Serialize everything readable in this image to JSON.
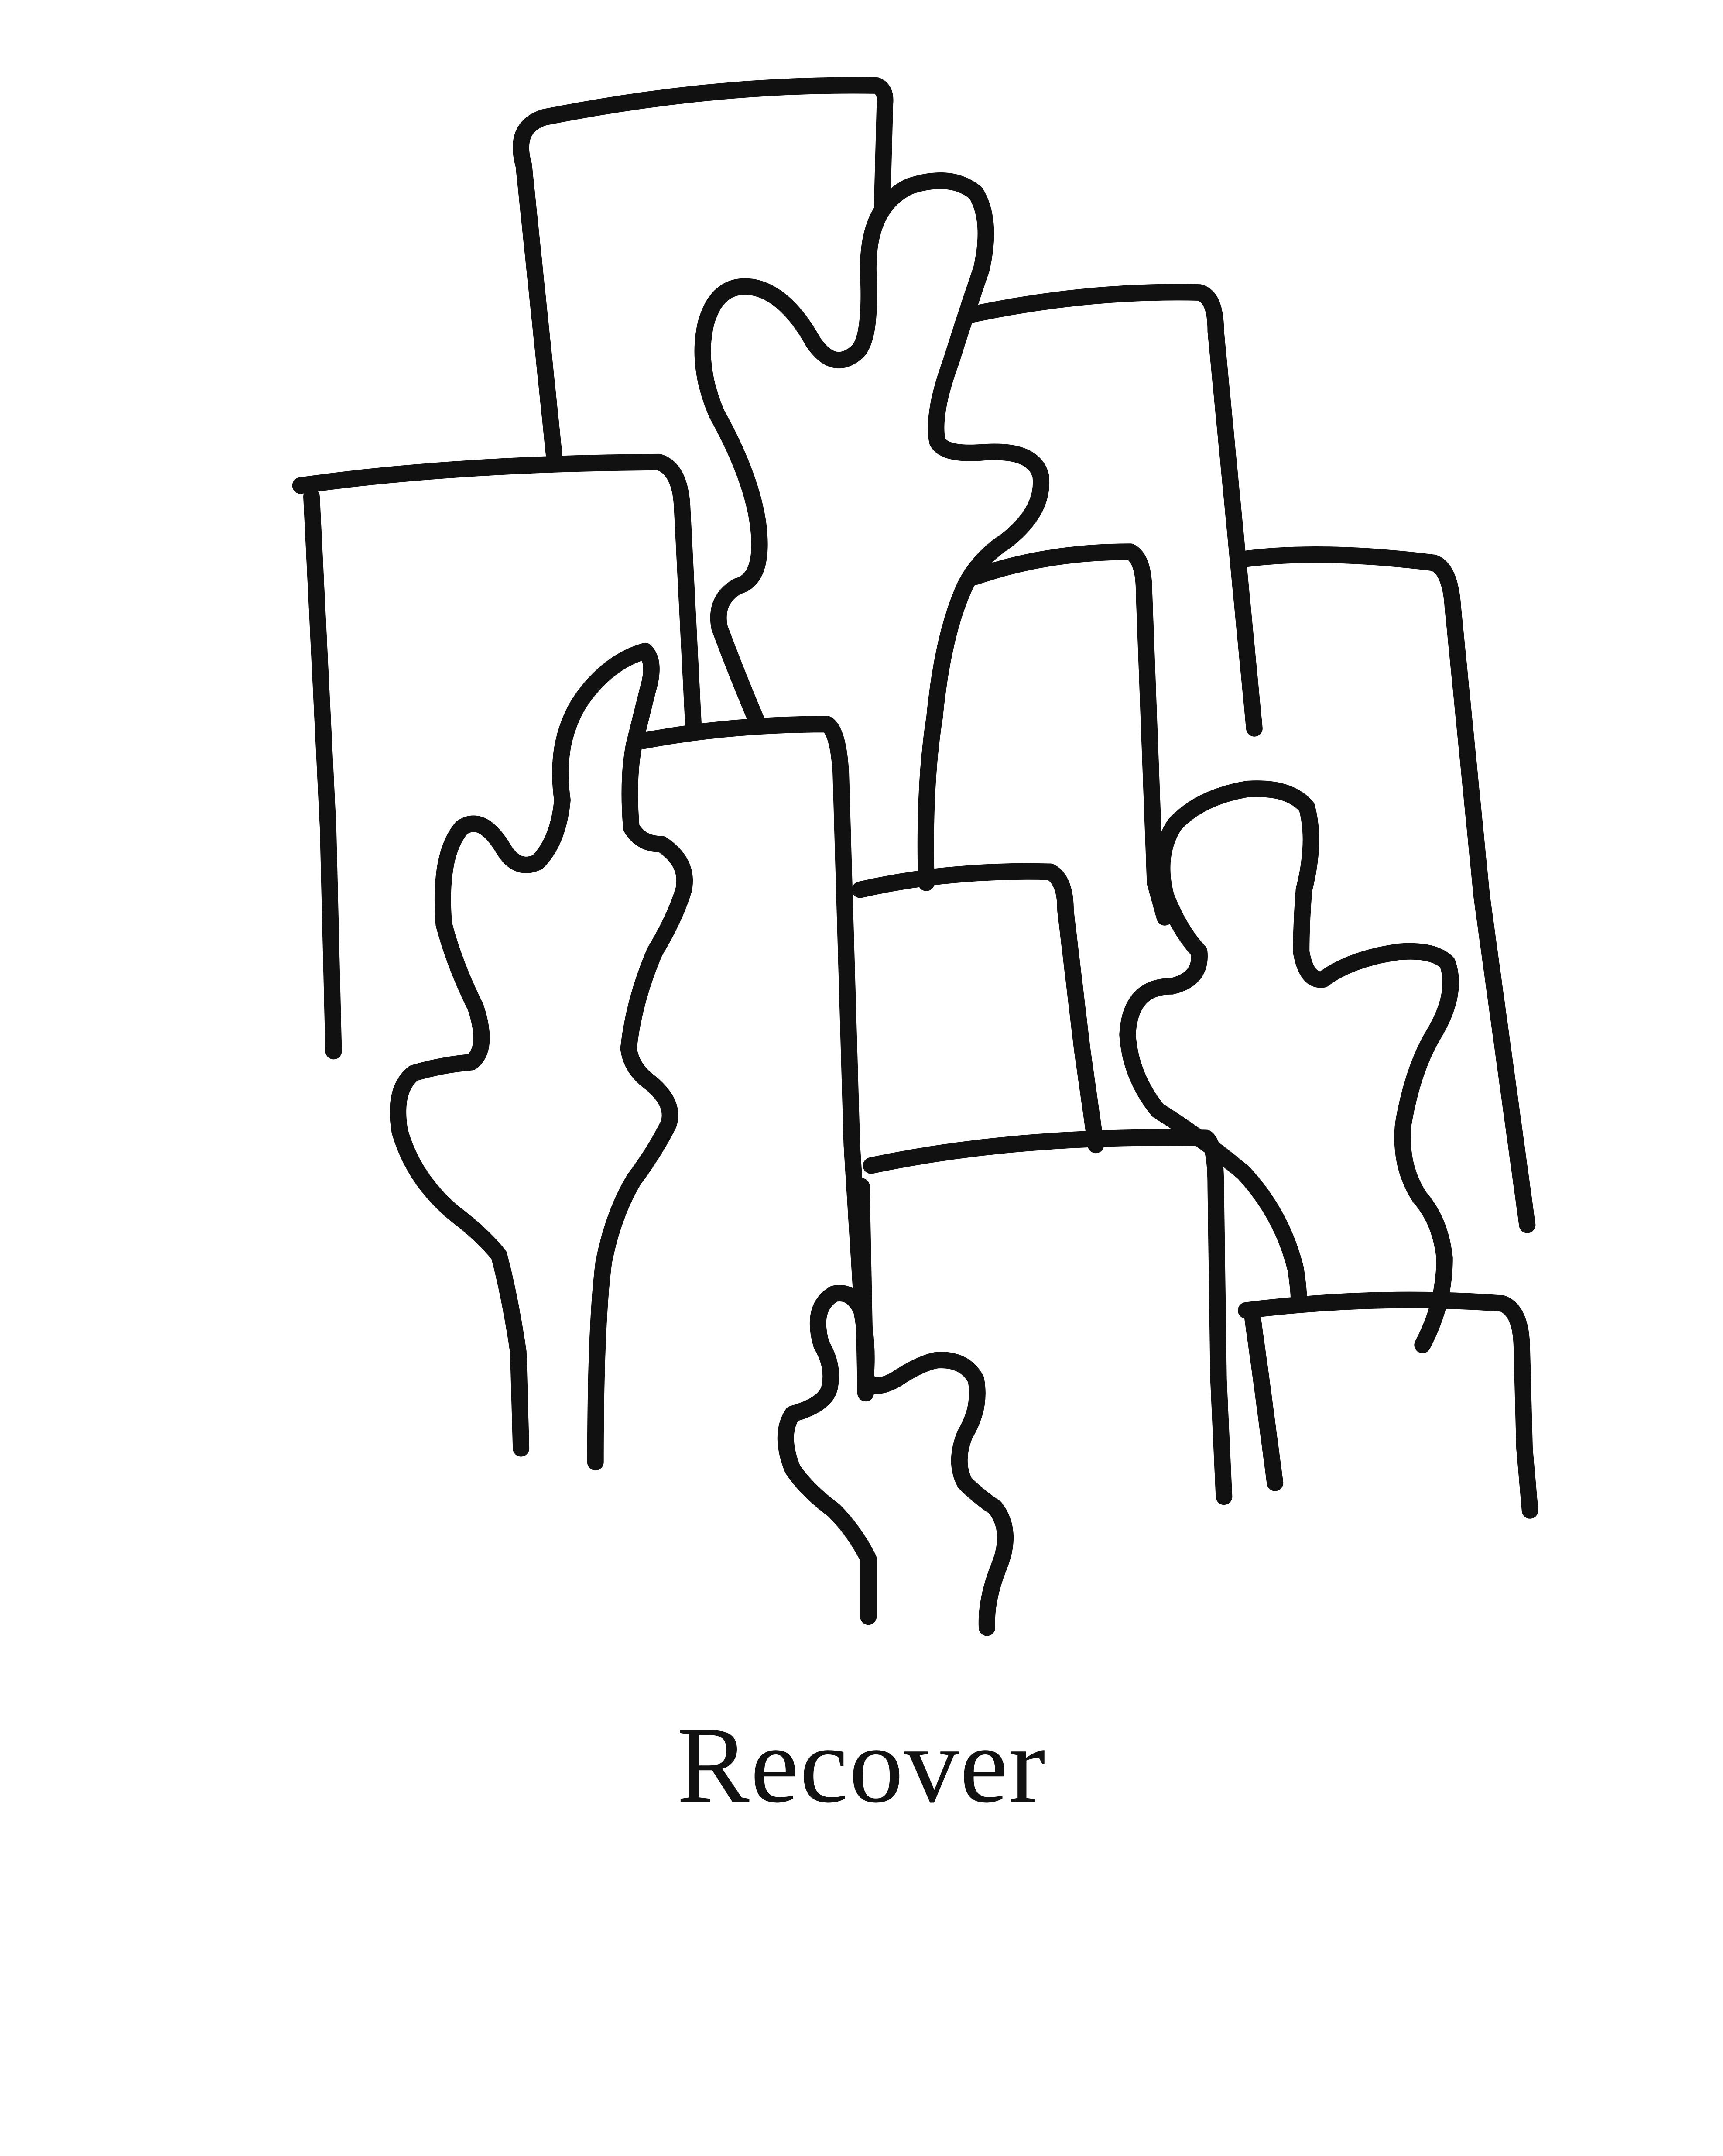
{
  "caption": {
    "text": "Recover"
  },
  "colors": {
    "background": "#ffffff",
    "ink": "#111111"
  }
}
